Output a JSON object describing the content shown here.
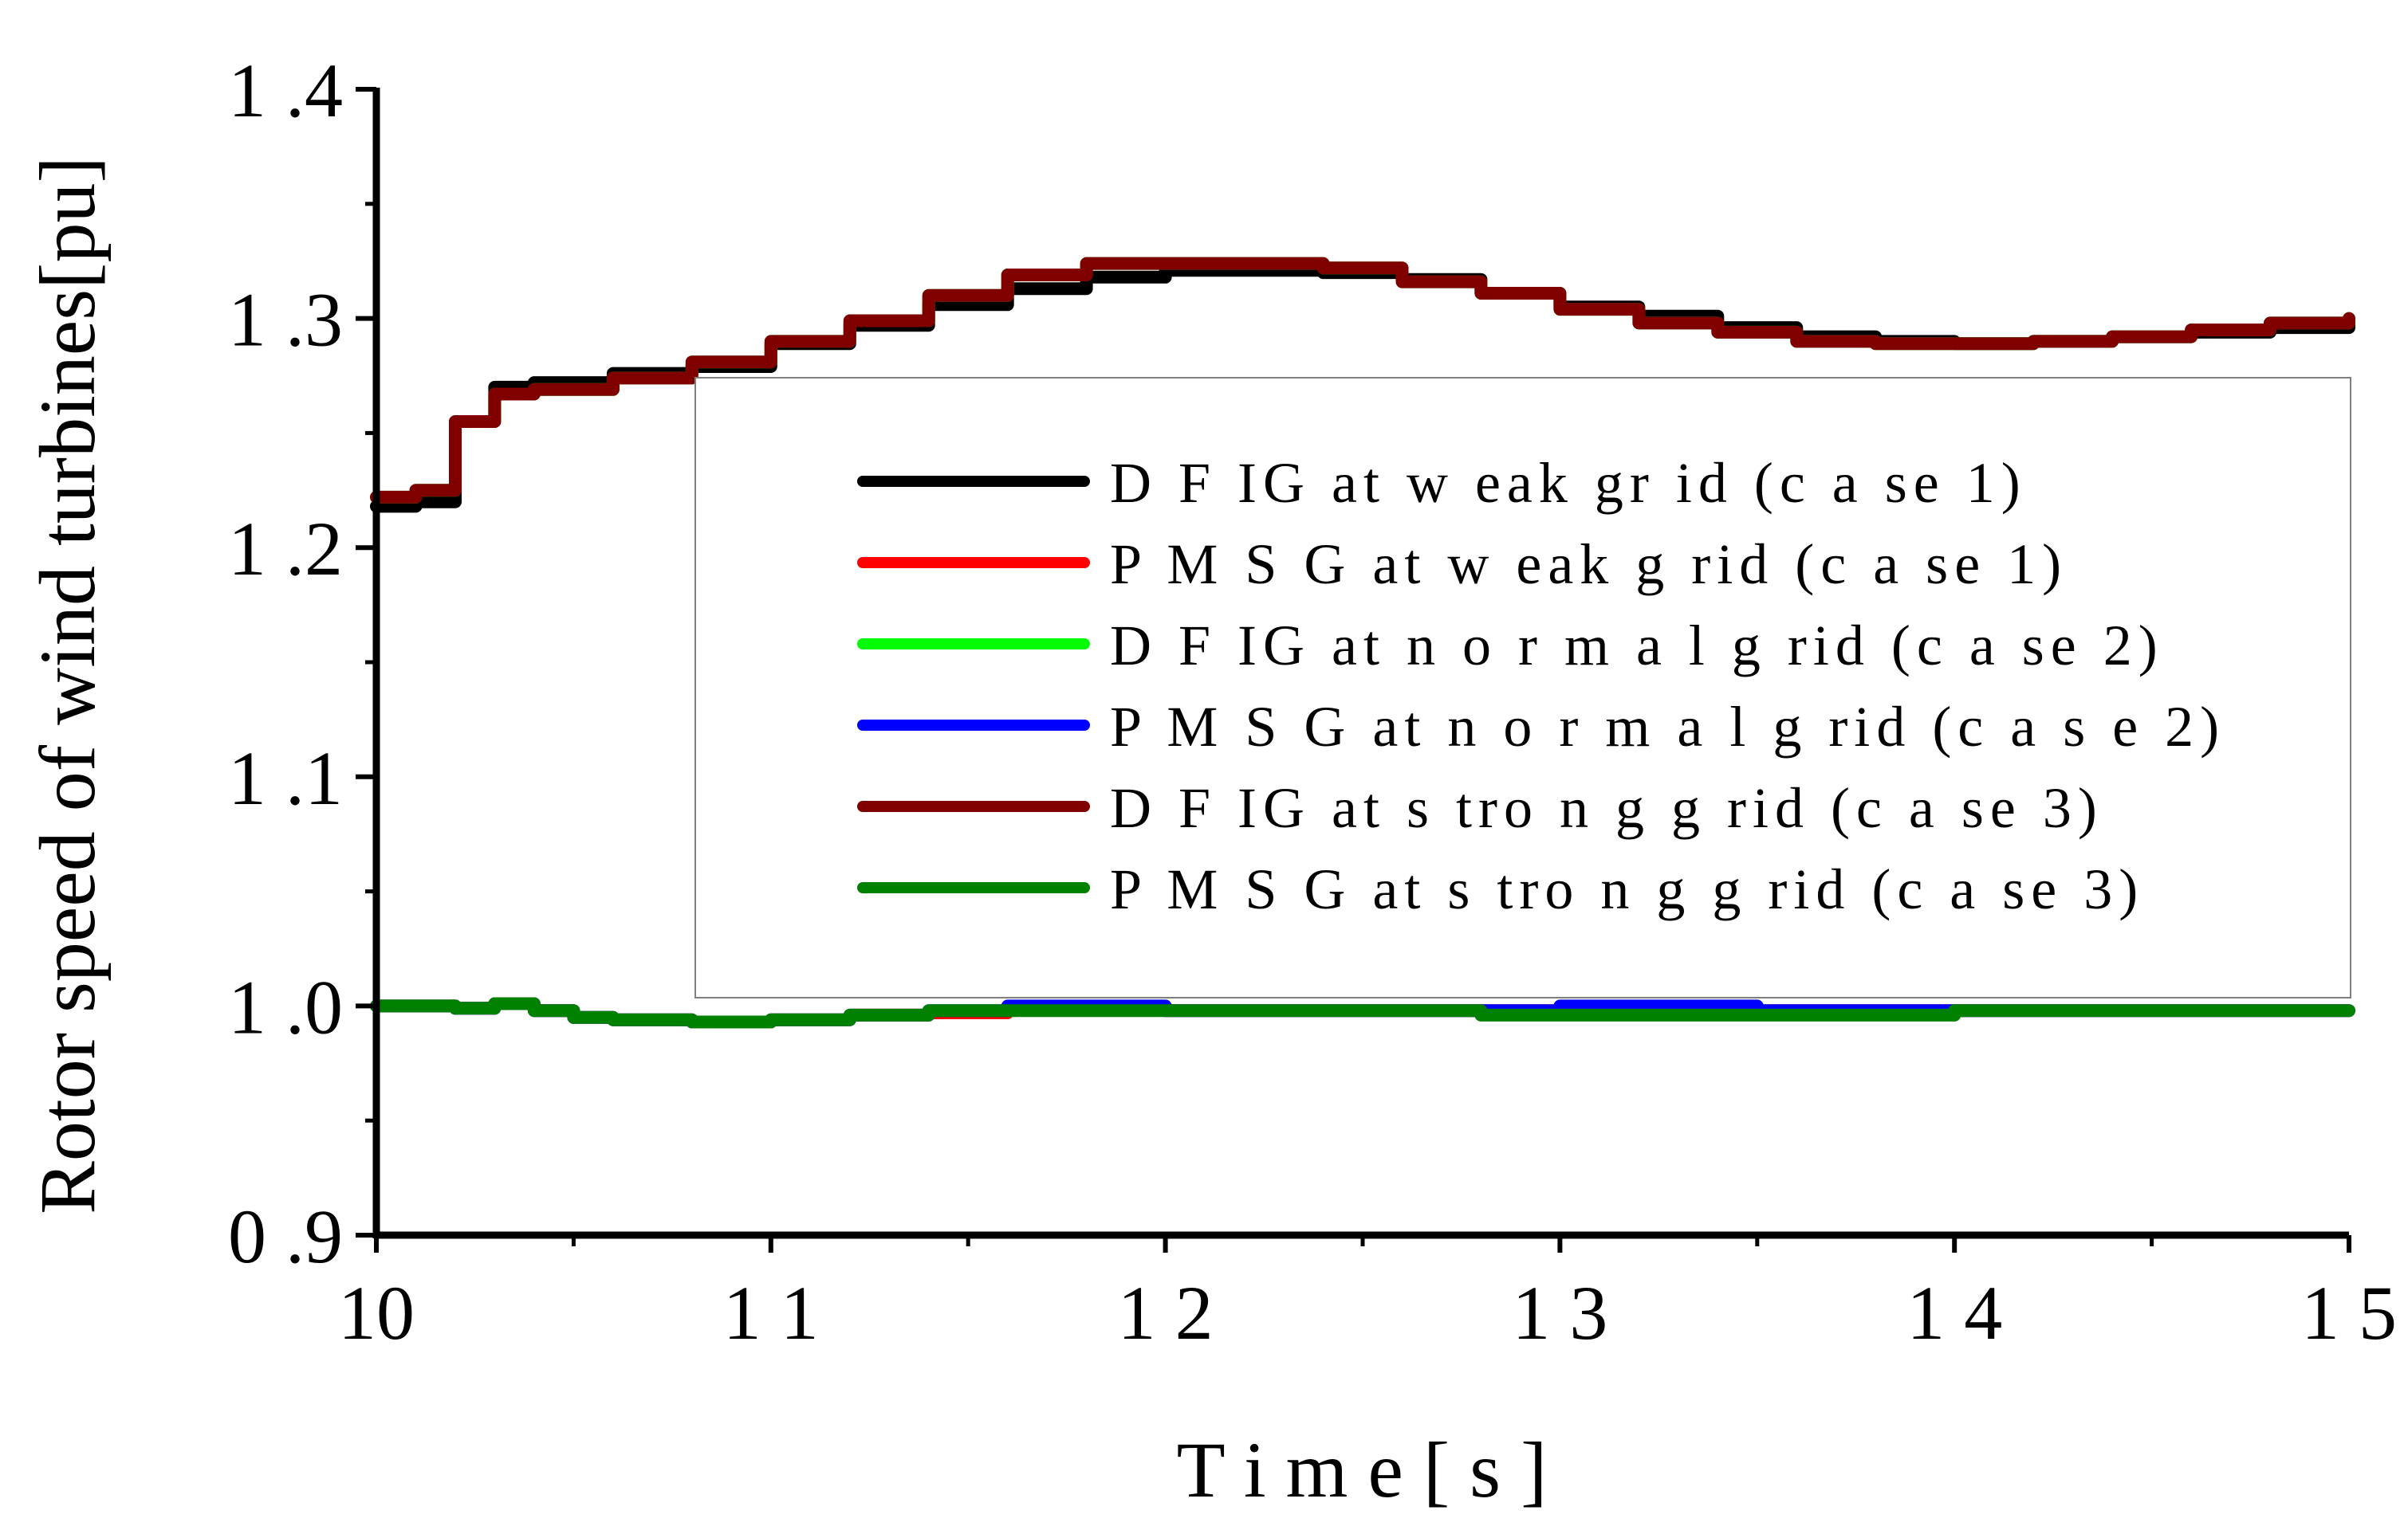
{
  "chart_data": {
    "type": "line",
    "xlabel": "T i m e [ s ]",
    "ylabel": "Rotor speed of wind turbines[pu]",
    "xlim": [
      10,
      15
    ],
    "ylim": [
      0.9,
      1.4
    ],
    "x_ticks": [
      10,
      11,
      12,
      13,
      14,
      15
    ],
    "x_tick_labels": [
      "10",
      "1 1",
      "1 2",
      "1 3",
      "1 4",
      "1 5"
    ],
    "y_ticks": [
      0.9,
      1.0,
      1.1,
      1.2,
      1.3,
      1.4
    ],
    "y_tick_labels": [
      "0 .9",
      "1 .0",
      "1 .1",
      "1 .2",
      "1 .3",
      "1 .4"
    ],
    "legend_position": "center-right",
    "series": [
      {
        "name": "D F IG  at  w eak  gr id  (c a se  1)",
        "color": "#000000",
        "x": [
          10,
          10.1,
          10.2,
          10.3,
          10.4,
          10.6,
          10.8,
          11.0,
          11.2,
          11.4,
          11.6,
          11.8,
          12.0,
          12.2,
          12.4,
          12.6,
          12.8,
          13.0,
          13.2,
          13.4,
          13.6,
          13.8,
          14.0,
          14.2,
          14.4,
          14.6,
          14.8,
          15.0
        ],
        "values": [
          1.218,
          1.22,
          1.255,
          1.27,
          1.272,
          1.276,
          1.279,
          1.289,
          1.297,
          1.306,
          1.313,
          1.318,
          1.321,
          1.321,
          1.32,
          1.317,
          1.311,
          1.305,
          1.301,
          1.296,
          1.292,
          1.29,
          1.289,
          1.29,
          1.292,
          1.294,
          1.296,
          1.297
        ]
      },
      {
        "name": "P M S G   at  w eak  g rid  (c a se  1)",
        "color": "#ff0000",
        "x": [
          10,
          10.1,
          10.2,
          10.3,
          10.4,
          10.5,
          10.6,
          10.8,
          11.0,
          11.2,
          11.4,
          11.6,
          11.8,
          12.0,
          12.4,
          12.8,
          13.0,
          13.2,
          13.5,
          14.0,
          14.5,
          15.0
        ],
        "values": [
          1.0,
          1.0,
          0.999,
          1.001,
          0.998,
          0.995,
          0.994,
          0.993,
          0.994,
          0.996,
          0.997,
          0.999,
          0.999,
          0.998,
          0.998,
          0.998,
          0.998,
          0.998,
          0.998,
          0.998,
          0.998,
          0.998
        ]
      },
      {
        "name": "D F IG  at n o r m a l g rid  (c a se  2)",
        "color": "#00ff00",
        "x": [
          10,
          10.1,
          10.2,
          10.3,
          10.4,
          10.6,
          10.8,
          11.0,
          11.2,
          11.4,
          11.6,
          11.8,
          12.0,
          12.2,
          12.4,
          12.6,
          12.8,
          13.0,
          13.2,
          13.4,
          13.6,
          13.8,
          14.0,
          14.2,
          14.4,
          14.6,
          14.8,
          15.0
        ],
        "values": [
          1.222,
          1.225,
          1.255,
          1.267,
          1.269,
          1.274,
          1.281,
          1.29,
          1.299,
          1.31,
          1.319,
          1.324,
          1.324,
          1.324,
          1.322,
          1.316,
          1.311,
          1.304,
          1.298,
          1.294,
          1.29,
          1.289,
          1.289,
          1.29,
          1.292,
          1.295,
          1.298,
          1.3
        ]
      },
      {
        "name": "P M S G   at n o r m a l g rid  (c a s e  2)",
        "color": "#0000ff",
        "x": [
          10,
          10.1,
          10.2,
          10.3,
          10.4,
          10.5,
          10.6,
          10.8,
          11.0,
          11.2,
          11.4,
          11.6,
          11.8,
          12.0,
          12.4,
          12.8,
          13.0,
          13.2,
          13.5,
          14.0,
          14.5,
          15.0
        ],
        "values": [
          1.0,
          1.0,
          0.999,
          1.001,
          0.998,
          0.995,
          0.994,
          0.993,
          0.994,
          0.996,
          0.998,
          1.0,
          1.0,
          0.998,
          0.998,
          0.998,
          1.0,
          1.0,
          0.998,
          0.998,
          0.998,
          0.998
        ]
      },
      {
        "name": "D F IG  at s tro n g  g rid  (c a se  3)",
        "color": "#800000",
        "x": [
          10,
          10.1,
          10.2,
          10.3,
          10.4,
          10.6,
          10.8,
          11.0,
          11.2,
          11.4,
          11.6,
          11.8,
          12.0,
          12.2,
          12.4,
          12.6,
          12.8,
          13.0,
          13.2,
          13.4,
          13.6,
          13.8,
          14.0,
          14.2,
          14.4,
          14.6,
          14.8,
          15.0
        ],
        "values": [
          1.222,
          1.225,
          1.255,
          1.267,
          1.269,
          1.274,
          1.281,
          1.29,
          1.299,
          1.31,
          1.319,
          1.324,
          1.324,
          1.324,
          1.322,
          1.316,
          1.311,
          1.304,
          1.298,
          1.294,
          1.29,
          1.289,
          1.289,
          1.29,
          1.292,
          1.295,
          1.298,
          1.3
        ]
      },
      {
        "name": "P M S G   at s tro n g  g rid  (c a se  3)",
        "color": "#008000",
        "x": [
          10,
          10.1,
          10.2,
          10.3,
          10.4,
          10.5,
          10.6,
          10.8,
          11.0,
          11.2,
          11.4,
          11.6,
          11.8,
          12.0,
          12.4,
          12.8,
          13.0,
          13.2,
          13.5,
          14.0,
          14.5,
          15.0
        ],
        "values": [
          1.0,
          1.0,
          0.999,
          1.001,
          0.998,
          0.995,
          0.994,
          0.993,
          0.994,
          0.996,
          0.998,
          0.998,
          0.998,
          0.998,
          0.998,
          0.996,
          0.996,
          0.996,
          0.996,
          0.998,
          0.998,
          0.998
        ]
      }
    ]
  }
}
